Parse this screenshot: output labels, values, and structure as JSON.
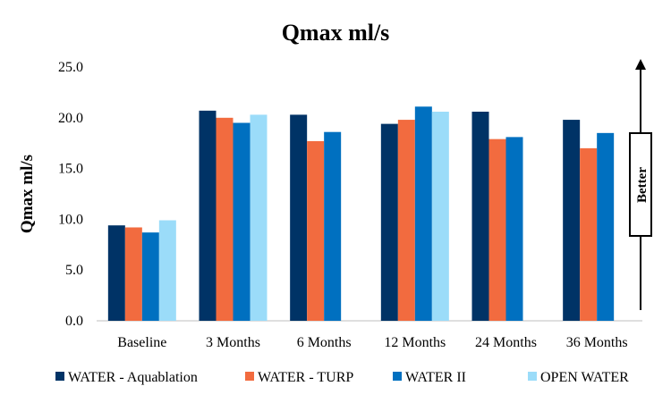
{
  "chart_data": {
    "type": "bar",
    "title": "Qmax ml/s",
    "xlabel": "",
    "ylabel": "Qmax ml/s",
    "ylim": [
      0,
      25
    ],
    "yticks": [
      "0.0",
      "5.0",
      "10.0",
      "15.0",
      "20.0",
      "25.0"
    ],
    "grid": false,
    "legend_position": "bottom",
    "categories": [
      "Baseline",
      "3 Months",
      "6 Months",
      "12 Months",
      "24 Months",
      "36 Months"
    ],
    "series": [
      {
        "name": "WATER - Aquablation",
        "color": "#003366",
        "values": [
          9.4,
          20.7,
          20.3,
          19.4,
          20.6,
          19.8
        ]
      },
      {
        "name": "WATER - TURP",
        "color": "#f26b3f",
        "values": [
          9.2,
          20.0,
          17.7,
          19.8,
          17.9,
          17.0
        ]
      },
      {
        "name": "WATER II",
        "color": "#0070c0",
        "values": [
          8.7,
          19.5,
          18.6,
          21.1,
          18.1,
          18.5
        ]
      },
      {
        "name": "OPEN WATER",
        "color": "#9bdcf9",
        "values": [
          9.9,
          20.3,
          null,
          20.6,
          null,
          null
        ]
      }
    ],
    "annotation": {
      "text": "Better",
      "direction": "up"
    }
  }
}
